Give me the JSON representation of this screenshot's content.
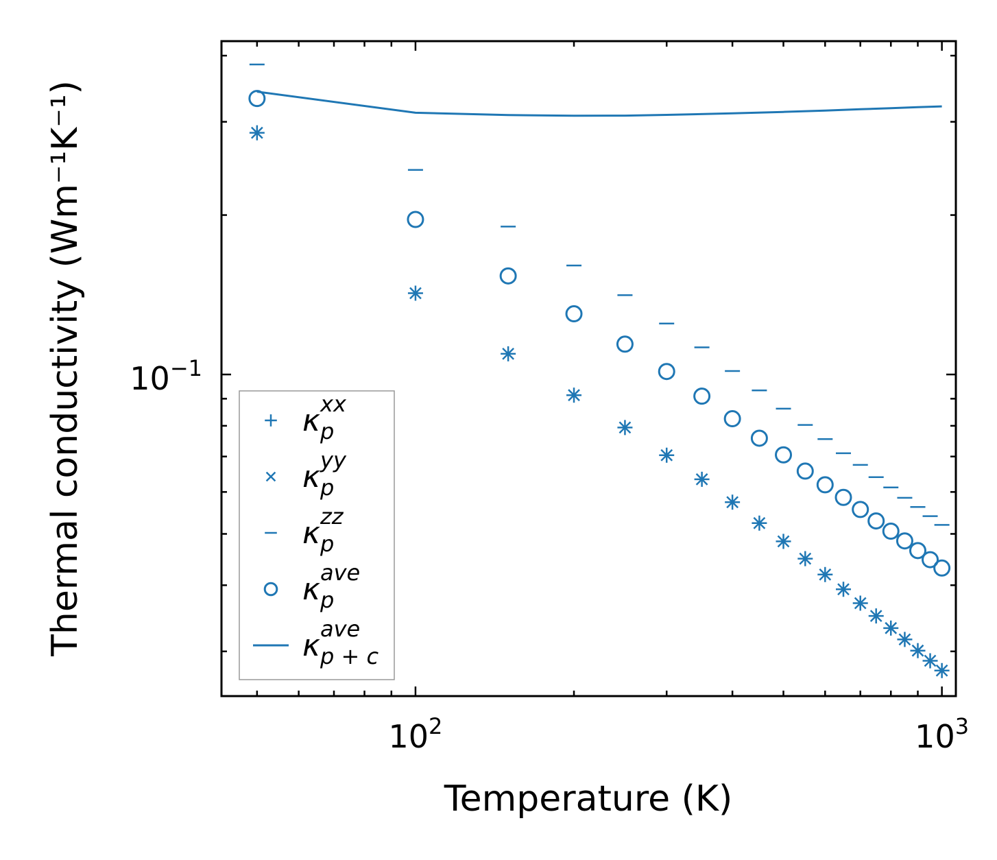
{
  "chart_data": {
    "type": "scatter",
    "title": "",
    "xlabel": "Temperature (K)",
    "ylabel": "Thermal conductivity (Wm⁻¹K⁻¹)",
    "xscale": "log",
    "yscale": "log",
    "xlim": [
      42.8,
      1063
    ],
    "ylim": [
      0.0247,
      0.426
    ],
    "x_major_ticks": [
      {
        "value": 100,
        "base": "10",
        "exp": "2"
      },
      {
        "value": 1000,
        "base": "10",
        "exp": "3"
      }
    ],
    "y_major_ticks": [
      {
        "value": 0.1,
        "base": "10",
        "exp": "−1"
      }
    ],
    "color": "#1f77b4",
    "x": [
      50,
      100,
      150,
      200,
      250,
      300,
      350,
      400,
      450,
      500,
      550,
      600,
      650,
      700,
      750,
      800,
      850,
      900,
      950,
      1000
    ],
    "series": [
      {
        "name": "kxx",
        "marker": "+",
        "values": [
          0.286,
          0.1424,
          0.1094,
          0.0914,
          0.0794,
          0.0704,
          0.0634,
          0.0574,
          0.0524,
          0.0484,
          0.0449,
          0.0419,
          0.0393,
          0.037,
          0.035,
          0.0332,
          0.0316,
          0.0301,
          0.0288,
          0.0276
        ]
      },
      {
        "name": "kyy",
        "marker": "x",
        "values": [
          0.286,
          0.1424,
          0.1094,
          0.0914,
          0.0794,
          0.0704,
          0.0634,
          0.0574,
          0.0524,
          0.0484,
          0.0449,
          0.0419,
          0.0393,
          0.037,
          0.035,
          0.0332,
          0.0316,
          0.0301,
          0.0288,
          0.0276
        ]
      },
      {
        "name": "kzz",
        "marker": "_",
        "values": [
          0.385,
          0.2434,
          0.1902,
          0.1606,
          0.1412,
          0.1248,
          0.1125,
          0.1015,
          0.0933,
          0.0862,
          0.0803,
          0.0755,
          0.071,
          0.0675,
          0.064,
          0.0612,
          0.0585,
          0.0562,
          0.054,
          0.052
        ]
      },
      {
        "name": "kave",
        "marker": "o",
        "values": [
          0.332,
          0.1962,
          0.1535,
          0.1302,
          0.1141,
          0.1013,
          0.091,
          0.0825,
          0.0758,
          0.0705,
          0.0657,
          0.0619,
          0.0586,
          0.0556,
          0.0529,
          0.0506,
          0.0485,
          0.0465,
          0.0447,
          0.0431
        ]
      },
      {
        "name": "kave_pc",
        "marker": "line",
        "x": [
          50,
          100,
          150,
          200,
          250,
          300,
          400,
          500,
          600,
          700,
          800,
          900,
          1000
        ],
        "values": [
          0.342,
          0.312,
          0.309,
          0.308,
          0.3082,
          0.3092,
          0.3112,
          0.3132,
          0.315,
          0.3168,
          0.3183,
          0.3197,
          0.3208
        ]
      }
    ],
    "legend": {
      "location": "lower-left",
      "entries": [
        {
          "marker": "+",
          "sym": "κ",
          "sub": "p",
          "sup": "xx"
        },
        {
          "marker": "x",
          "sym": "κ",
          "sub": "p",
          "sup": "yy"
        },
        {
          "marker": "_",
          "sym": "κ",
          "sub": "p",
          "sup": "zz"
        },
        {
          "marker": "o",
          "sym": "κ",
          "sub": "p",
          "sup": "ave"
        },
        {
          "marker": "line",
          "sym": "κ",
          "sub": "p + c",
          "sup": "ave"
        }
      ]
    },
    "ticks_direction": "in",
    "grid": false
  }
}
